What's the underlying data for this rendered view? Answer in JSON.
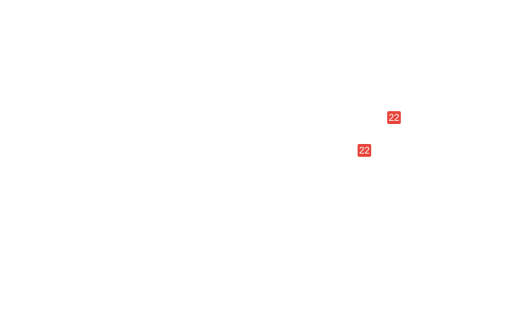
{
  "map": {
    "background_color": "#ffffff",
    "badge_color": "#e8453c",
    "badge_text_color": "#ffffff",
    "route_badges": [
      {
        "label": "22"
      },
      {
        "label": "22"
      }
    ]
  }
}
